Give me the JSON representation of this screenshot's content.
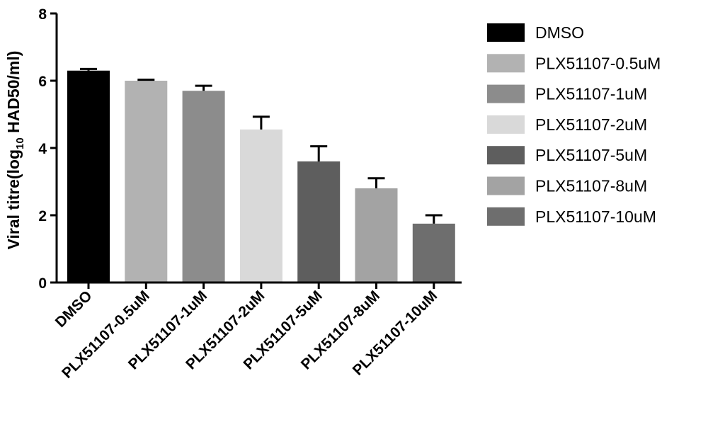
{
  "chart_data": {
    "type": "bar",
    "categories": [
      "DMSO",
      "PLX51107-0.5uM",
      "PLX51107-1uM",
      "PLX51107-2uM",
      "PLX51107-5uM",
      "PLX51107-8uM",
      "PLX51107-10uM"
    ],
    "values": [
      6.3,
      6.0,
      5.7,
      4.55,
      3.6,
      2.8,
      1.75
    ],
    "errors": [
      0.05,
      0.03,
      0.15,
      0.38,
      0.45,
      0.3,
      0.25
    ],
    "colors": [
      "#000000",
      "#b2b2b2",
      "#8c8c8c",
      "#d9d9d9",
      "#5e5e5e",
      "#a3a3a3",
      "#6e6e6e"
    ],
    "ylabel_main": "Viral titre(log",
    "ylabel_sub": "10",
    "ylabel_rest": " HAD50/ml)",
    "ylim": [
      0,
      8
    ],
    "yticks": [
      "0",
      "2",
      "4",
      "6",
      "8"
    ],
    "legend_position": "right",
    "grid": false
  }
}
